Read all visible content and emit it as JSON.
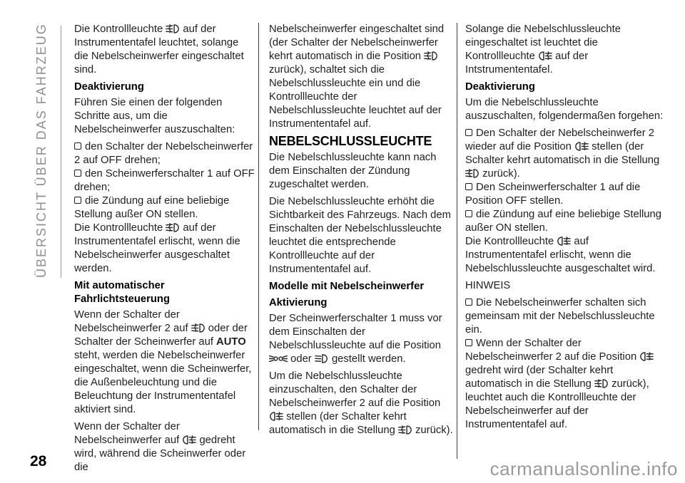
{
  "page": {
    "sidebar_label": "ÜBERSICHT ÜBER DAS FAHRZEUG",
    "page_number": "28",
    "watermark": "carmanualsonline.info"
  },
  "icons": {
    "front-fog-light-icon": "front fog lamp indicator",
    "rear-fog-light-icon": "rear fog lamp indicator",
    "position-lights-icon": "position/parking lights symbol",
    "low-beam-headlight-icon": "low beam headlight symbol",
    "list-square-icon": "square list bullet"
  },
  "columns": [
    [
      {
        "type": "p",
        "text": "Die Kontrollleuchte {front-fog-light-icon} auf der Instrumententafel leuchtet, solange die Nebelscheinwerfer eingeschaltet sind."
      },
      {
        "type": "h3",
        "text": "Deaktivierung"
      },
      {
        "type": "p",
        "text": "Führen Sie einen der folgenden Schritte aus, um die Nebelscheinwerfer auszuschalten:"
      },
      {
        "type": "li",
        "text": "den Schalter der Nebelscheinwerfer 2 auf OFF drehen;"
      },
      {
        "type": "li",
        "text": "den Scheinwerferschalter 1 auf OFF drehen;"
      },
      {
        "type": "li",
        "text": "die Zündung auf eine beliebige Stellung außer ON stellen."
      },
      {
        "type": "p",
        "text": "Die Kontrollleuchte {front-fog-light-icon} auf der Instrumententafel erlischt, wenn die Nebelscheinwerfer ausgeschaltet werden."
      },
      {
        "type": "h3",
        "text": "Mit automatischer Fahrlichtsteuerung"
      },
      {
        "type": "p",
        "text": "Wenn der Schalter der Nebelscheinwerfer 2 auf {front-fog-light-icon} oder der Schalter der Scheinwerfer auf **AUTO** steht, werden die Nebelscheinwerfer eingeschaltet, wenn die Scheinwerfer, die Außenbeleuchtung und die Beleuchtung der Instrumententafel aktiviert sind."
      },
      {
        "type": "p",
        "text": "Wenn der Schalter der Nebelscheinwerfer auf {rear-fog-light-icon} gedreht wird, während die Scheinwerfer oder die"
      }
    ],
    [
      {
        "type": "p",
        "text": "Nebelscheinwerfer eingeschaltet sind (der Schalter der Nebelscheinwerfer kehrt automatisch in die Position {front-fog-light-icon} zurück), schaltet sich die Nebelschlussleuchte ein und die Kontrollleuchte der Nebelschlussleuchte leuchtet auf der Instrumententafel auf."
      },
      {
        "type": "h2",
        "text": "NEBELSCHLUSSLEUCHTE"
      },
      {
        "type": "p",
        "text": "Die Nebelschlussleuchte kann nach dem Einschalten der Zündung zugeschaltet werden."
      },
      {
        "type": "p",
        "text": "Die Nebelschlussleuchte erhöht die Sichtbarkeit des Fahrzeugs. Nach dem Einschalten der Nebelschlussleuchte leuchtet die entsprechende Kontrollleuchte auf der Instrumententafel auf."
      },
      {
        "type": "h3",
        "text": "Modelle mit Nebelscheinwerfer"
      },
      {
        "type": "h3",
        "text": "Aktivierung"
      },
      {
        "type": "p",
        "text": "Der Scheinwerferschalter 1 muss vor dem Einschalten der Nebelschlussleuchte auf die Position {position-lights-icon} oder {low-beam-headlight-icon} gestellt werden."
      },
      {
        "type": "p",
        "text": "Um die Nebelschlussleuchte einzuschalten, den Schalter der Nebelscheinwerfer 2 auf die Position {rear-fog-light-icon} stellen (der Schalter kehrt automatisch in die Stellung {front-fog-light-icon} zurück)."
      }
    ],
    [
      {
        "type": "p",
        "text": "Solange die Nebelschlussleuchte eingeschaltet ist leuchtet die Kontrollleuchte {rear-fog-light-icon} auf der Intstrumententafel."
      },
      {
        "type": "h3",
        "text": "Deaktivierung"
      },
      {
        "type": "p",
        "text": "Um die Nebelschlussleuchte auszuschalten, folgendermaßen forgehen:"
      },
      {
        "type": "li",
        "text": "Den Schalter der Nebelscheinwerfer 2 wieder auf die Position {rear-fog-light-icon} stellen (der Schalter kehrt automatisch in die Stellung {front-fog-light-icon} zurück)."
      },
      {
        "type": "li",
        "text": "Den Scheinwerferschalter 1 auf die Position OFF stellen."
      },
      {
        "type": "li",
        "text": "die Zündung auf eine beliebige Stellung außer ON stellen."
      },
      {
        "type": "p",
        "text": "Die Kontrollleuchte {rear-fog-light-icon} auf Instrumententafel erlischt, wenn die Nebelschlussleuchte ausgeschaltet wird."
      },
      {
        "type": "p",
        "text": "HINWEIS"
      },
      {
        "type": "li",
        "text": "Die Nebelscheinwerfer schalten sich gemeinsam mit der Nebelschlussleuchte ein."
      },
      {
        "type": "li",
        "text": "Wenn der Schalter der Nebelscheinwerfer 2 auf die Position {rear-fog-light-icon} gedreht wird (der Schalter kehrt automatisch in die Stellung {front-fog-light-icon} zurück), leuchtet auch die Kontrollleuchte der Nebelscheinwerfer auf der Instrumententafel auf."
      }
    ]
  ]
}
